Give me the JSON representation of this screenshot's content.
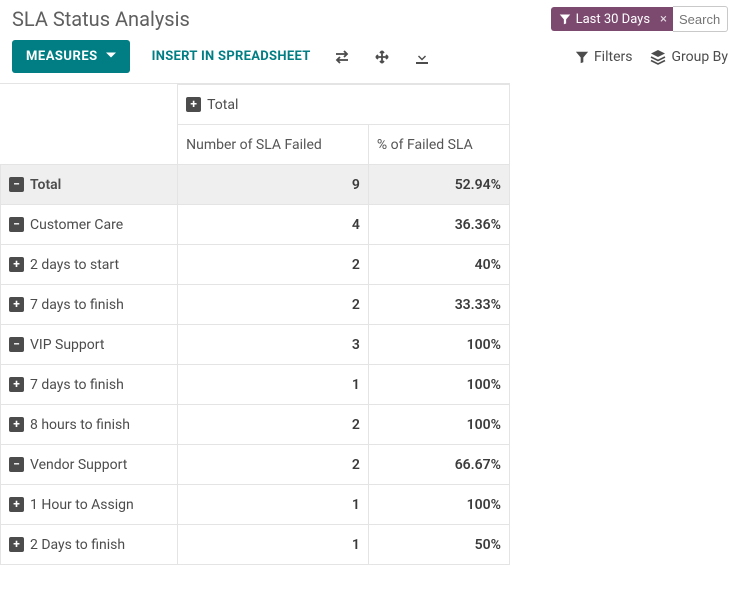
{
  "title": "SLA Status Analysis",
  "filter_chip": {
    "label": "Last 30 Days",
    "close": "×"
  },
  "search": {
    "placeholder": "Search..."
  },
  "toolbar": {
    "measures": "MEASURES",
    "insert": "INSERT IN SPREADSHEET",
    "filters": "Filters",
    "group_by": "Group By"
  },
  "pivot": {
    "col_total_label": "Total",
    "columns": [
      "Number of SLA Failed",
      "% of Failed SLA"
    ],
    "row_total": {
      "label": "Total",
      "values": [
        "9",
        "52.94%"
      ]
    },
    "groups": [
      {
        "label": "Customer Care",
        "values": [
          "4",
          "36.36%"
        ],
        "children": [
          {
            "label": "2 days to start",
            "values": [
              "2",
              "40%"
            ]
          },
          {
            "label": "7 days to finish",
            "values": [
              "2",
              "33.33%"
            ]
          }
        ]
      },
      {
        "label": "VIP Support",
        "values": [
          "3",
          "100%"
        ],
        "children": [
          {
            "label": "7 days to finish",
            "values": [
              "1",
              "100%"
            ]
          },
          {
            "label": "8 hours to finish",
            "values": [
              "2",
              "100%"
            ]
          }
        ]
      },
      {
        "label": "Vendor Support",
        "values": [
          "2",
          "66.67%"
        ],
        "children": [
          {
            "label": "1 Hour to Assign",
            "values": [
              "1",
              "100%"
            ]
          },
          {
            "label": "2 Days to finish",
            "values": [
              "1",
              "50%"
            ]
          }
        ]
      }
    ]
  },
  "colors": {
    "primary": "#017e84",
    "chip": "#7c4a6f",
    "text": "#4c4c4c",
    "border": "#e4e4e4",
    "total_bg": "#efefef"
  }
}
